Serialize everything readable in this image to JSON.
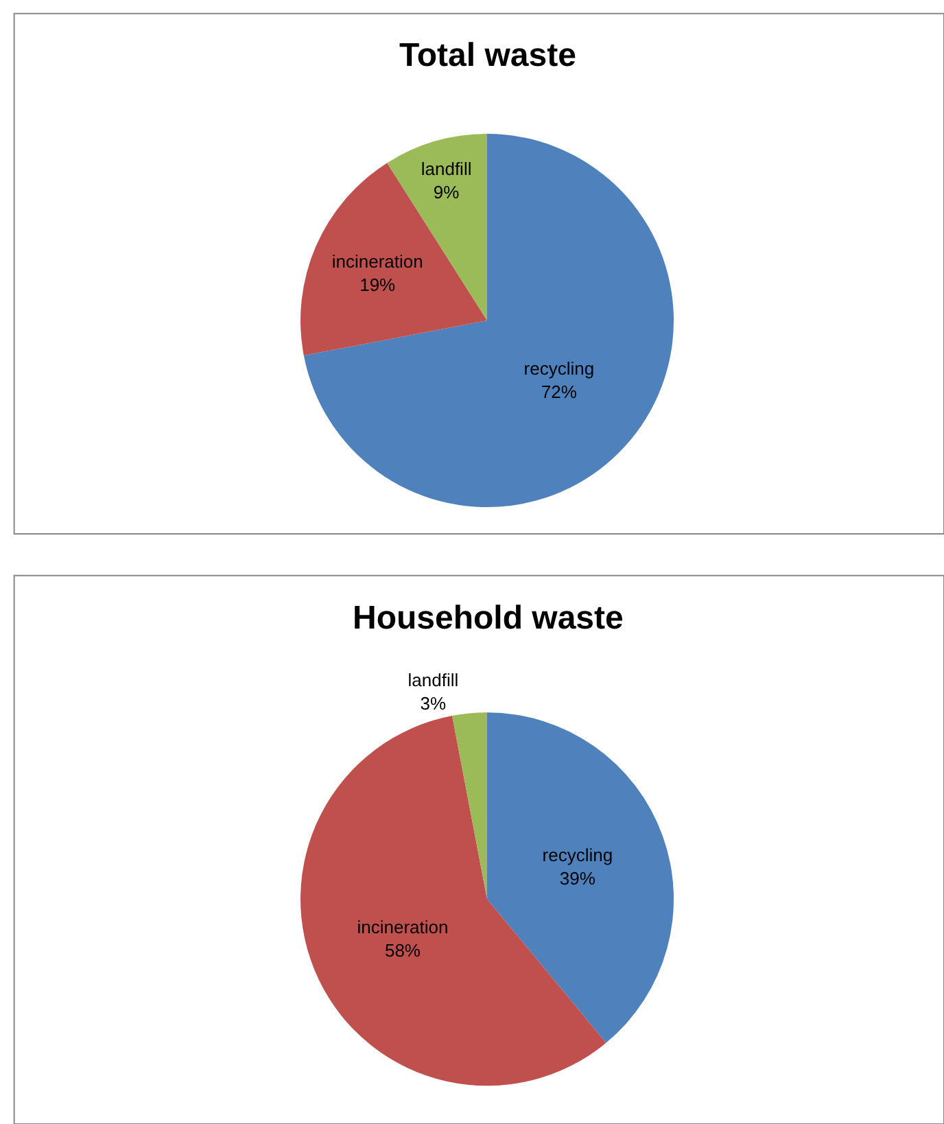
{
  "chart_data": [
    {
      "type": "pie",
      "title": "Total waste",
      "categories": [
        "recycling",
        "incineration",
        "landfill"
      ],
      "values": [
        72,
        19,
        9
      ],
      "value_labels": [
        "72%",
        "19%",
        "9%"
      ],
      "colors": [
        "#4f81bd",
        "#c0504d",
        "#9bbb59"
      ],
      "legend": false
    },
    {
      "type": "pie",
      "title": "Household waste",
      "categories": [
        "recycling",
        "incineration",
        "landfill"
      ],
      "values": [
        39,
        58,
        3
      ],
      "value_labels": [
        "39%",
        "58%",
        "3%"
      ],
      "colors": [
        "#4f81bd",
        "#c0504d",
        "#9bbb59"
      ],
      "legend": false
    }
  ]
}
